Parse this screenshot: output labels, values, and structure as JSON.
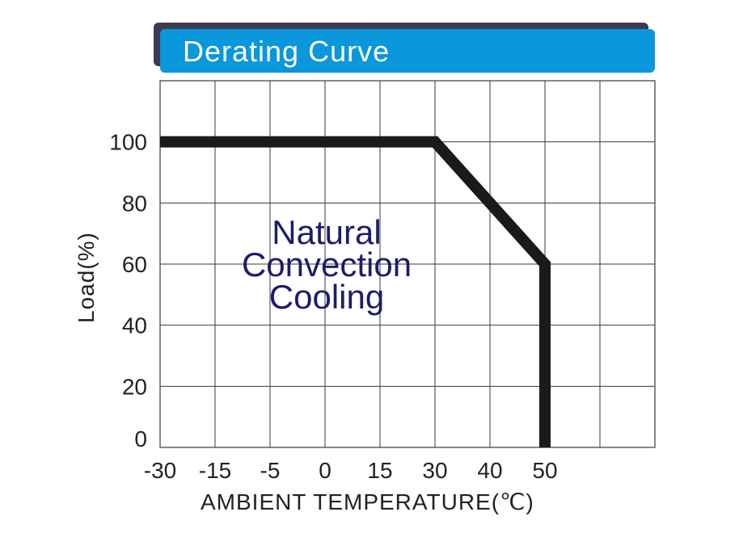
{
  "chart_data": {
    "type": "line",
    "title": "Derating Curve",
    "xlabel": "AMBIENT  TEMPERATURE",
    "xunit": "(℃)",
    "ylabel": "Load",
    "yunit": "(%)",
    "categories": [
      "-30",
      "-15",
      "-5",
      "0",
      "15",
      "30",
      "40",
      "50"
    ],
    "y_ticks": [
      "0",
      "20",
      "40",
      "60",
      "80",
      "100"
    ],
    "ylim": [
      0,
      120
    ],
    "grid": true,
    "annotation": [
      "Natural",
      "Convection",
      "Cooling"
    ],
    "series": [
      {
        "x": [
          "-30",
          "30",
          "50",
          "50"
        ],
        "values": [
          100,
          100,
          60,
          0
        ]
      }
    ]
  },
  "colors": {
    "banner_front": "#0a97db",
    "banner_shadow": "#3d3b52",
    "curve": "#1a1a1a",
    "grid": "#3a3a3a",
    "annotation": "#1f1a6b"
  }
}
